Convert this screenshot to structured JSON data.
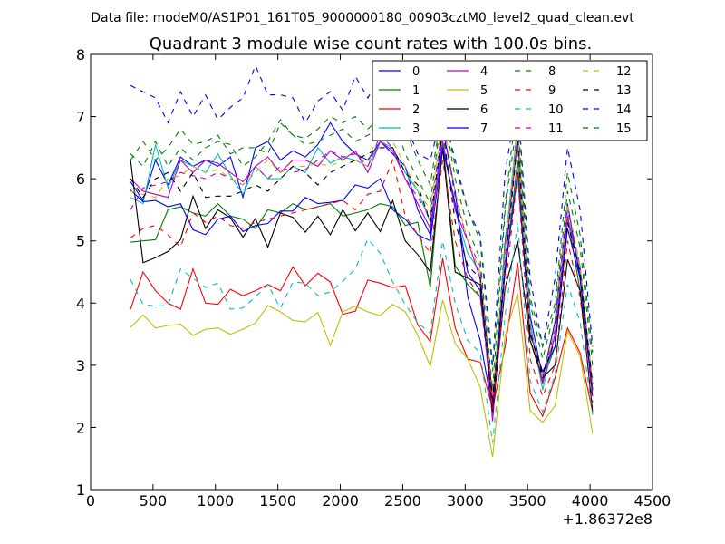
{
  "header": {
    "datafile": "Data file: modeM0/AS1P01_161T05_9000000180_00903cztM0_level2_quad_clean.evt"
  },
  "chart_data": {
    "type": "line",
    "title": "Quadrant 3 module wise count rates with 100.0s bins.",
    "xlabel": "",
    "ylabel": "",
    "x_offset_label": "+1.86372e8",
    "xlim": [
      0,
      4500
    ],
    "ylim": [
      1,
      8
    ],
    "xticks": [
      0,
      500,
      1000,
      1500,
      2000,
      2500,
      3000,
      3500,
      4000,
      4500
    ],
    "yticks": [
      1,
      2,
      3,
      4,
      5,
      6,
      7,
      8
    ],
    "legend_position": "top-right",
    "x": [
      320,
      420,
      520,
      620,
      720,
      820,
      920,
      1020,
      1120,
      1220,
      1320,
      1420,
      1520,
      1620,
      1720,
      1820,
      1920,
      2020,
      2120,
      2220,
      2320,
      2420,
      2520,
      2620,
      2720,
      2820,
      2920,
      3020,
      3120,
      3220,
      3320,
      3420,
      3520,
      3620,
      3720,
      3820,
      3920,
      4020
    ],
    "series": [
      {
        "name": "0",
        "color": "#0000ff",
        "dash": "solid",
        "values": [
          5.95,
          5.65,
          6.3,
          5.9,
          6.35,
          6.2,
          6.3,
          6.2,
          6.35,
          5.7,
          6.5,
          6.6,
          6.3,
          6.45,
          6.35,
          6.55,
          6.9,
          6.6,
          6.4,
          6.3,
          6.6,
          6.4,
          6.2,
          5.5,
          5.1,
          6.8,
          5.8,
          4.1,
          3.4,
          2.3,
          5.0,
          6.6,
          3.8,
          2.8,
          3.7,
          5.6,
          4.4,
          2.6
        ]
      },
      {
        "name": "1",
        "color": "#007f00",
        "dash": "solid",
        "values": [
          4.98,
          5.0,
          5.02,
          5.5,
          5.55,
          5.45,
          5.4,
          5.6,
          5.4,
          5.35,
          5.2,
          5.5,
          5.45,
          5.6,
          5.5,
          5.55,
          5.6,
          5.4,
          5.45,
          5.5,
          5.6,
          5.55,
          5.25,
          5.3,
          4.25,
          6.6,
          4.6,
          4.3,
          4.1,
          2.5,
          4.5,
          6.3,
          3.4,
          2.75,
          3.3,
          5.4,
          4.2,
          2.6
        ]
      },
      {
        "name": "2",
        "color": "#ff0000",
        "dash": "solid",
        "values": [
          3.9,
          4.5,
          4.2,
          4.0,
          3.9,
          4.55,
          4.0,
          3.98,
          4.22,
          4.12,
          4.2,
          4.3,
          4.2,
          4.58,
          4.28,
          4.48,
          4.34,
          3.82,
          3.87,
          4.37,
          4.32,
          4.25,
          4.28,
          3.65,
          3.38,
          4.72,
          3.6,
          3.1,
          3.05,
          2.3,
          3.3,
          4.65,
          2.55,
          2.18,
          2.8,
          3.6,
          3.2,
          2.25
        ]
      },
      {
        "name": "3",
        "color": "#00bfbf",
        "dash": "solid",
        "values": [
          5.7,
          5.6,
          6.55,
          5.85,
          6.3,
          6.2,
          6.1,
          6.4,
          6.05,
          5.75,
          6.2,
          6.0,
          6.0,
          6.2,
          6.1,
          6.5,
          6.25,
          6.35,
          6.3,
          6.2,
          6.6,
          6.5,
          6.1,
          5.8,
          5.3,
          6.6,
          5.5,
          4.8,
          4.5,
          2.2,
          4.9,
          6.9,
          3.7,
          2.6,
          3.5,
          5.3,
          4.6,
          2.7
        ]
      },
      {
        "name": "4",
        "color": "#bf00bf",
        "dash": "solid",
        "values": [
          6.0,
          5.8,
          5.75,
          5.7,
          6.3,
          6.1,
          6.3,
          6.25,
          6.1,
          5.95,
          6.2,
          6.35,
          6.1,
          6.3,
          6.3,
          6.2,
          6.45,
          6.3,
          6.45,
          6.1,
          6.6,
          6.45,
          6.0,
          5.6,
          5.2,
          6.6,
          5.5,
          5.0,
          4.4,
          2.1,
          4.6,
          6.8,
          3.6,
          2.7,
          3.5,
          5.4,
          4.5,
          2.6
        ]
      },
      {
        "name": "5",
        "color": "#bfbf00",
        "dash": "solid",
        "values": [
          3.61,
          3.81,
          3.6,
          3.64,
          3.66,
          3.48,
          3.58,
          3.6,
          3.5,
          3.58,
          3.68,
          3.96,
          3.86,
          3.72,
          3.7,
          3.85,
          3.32,
          3.86,
          3.95,
          3.86,
          3.8,
          3.98,
          3.86,
          3.48,
          2.98,
          4.05,
          3.35,
          3.1,
          2.65,
          1.52,
          3.48,
          4.15,
          2.27,
          2.08,
          2.35,
          3.55,
          3.15,
          1.9
        ]
      },
      {
        "name": "6",
        "color": "#000000",
        "dash": "solid",
        "values": [
          6.3,
          4.65,
          4.73,
          4.83,
          5.02,
          5.72,
          5.2,
          5.5,
          5.37,
          5.06,
          5.36,
          4.9,
          5.45,
          5.38,
          5.14,
          5.4,
          5.1,
          5.5,
          5.16,
          5.45,
          5.15,
          5.65,
          5.0,
          4.78,
          4.5,
          6.5,
          4.5,
          4.4,
          4.3,
          2.25,
          4.25,
          5.0,
          3.4,
          2.8,
          3.0,
          4.7,
          4.2,
          2.25
        ]
      },
      {
        "name": "7",
        "color": "#0000ff",
        "dash": "solid",
        "values": [
          5.82,
          5.63,
          5.65,
          5.55,
          5.6,
          5.18,
          5.1,
          5.35,
          5.4,
          5.15,
          5.25,
          5.28,
          5.48,
          5.48,
          5.7,
          5.6,
          5.62,
          5.65,
          5.9,
          5.85,
          6.0,
          5.5,
          5.35,
          5.1,
          5.0,
          6.5,
          5.6,
          4.5,
          4.2,
          2.4,
          4.5,
          6.1,
          3.5,
          2.9,
          3.3,
          5.2,
          4.4,
          2.5
        ]
      },
      {
        "name": "8",
        "color": "#007f00",
        "dash": "dash",
        "values": [
          6.4,
          6.2,
          6.6,
          6.2,
          6.5,
          6.3,
          6.5,
          6.6,
          6.55,
          6.2,
          6.35,
          6.6,
          6.95,
          6.7,
          6.55,
          6.6,
          6.7,
          6.8,
          6.6,
          6.7,
          6.8,
          7.0,
          6.4,
          6.0,
          5.6,
          7.2,
          6.0,
          5.2,
          4.7,
          2.6,
          5.5,
          7.0,
          4.0,
          3.1,
          3.9,
          5.8,
          4.9,
          3.0
        ]
      },
      {
        "name": "9",
        "color": "#ff0000",
        "dash": "dash",
        "values": [
          5.05,
          5.2,
          5.25,
          5.1,
          4.9,
          5.45,
          5.3,
          5.4,
          5.25,
          5.2,
          5.3,
          5.35,
          5.4,
          5.45,
          5.5,
          5.55,
          5.6,
          5.65,
          5.5,
          5.75,
          5.8,
          6.3,
          5.4,
          5.1,
          4.8,
          6.3,
          5.0,
          4.4,
          4.1,
          2.3,
          4.2,
          6.1,
          3.1,
          2.5,
          3.0,
          5.0,
          4.1,
          2.4
        ]
      },
      {
        "name": "10",
        "color": "#00bfbf",
        "dash": "dash",
        "values": [
          4.38,
          3.98,
          3.95,
          3.96,
          4.55,
          4.4,
          4.25,
          4.32,
          3.9,
          3.92,
          4.1,
          4.3,
          3.92,
          4.34,
          4.32,
          4.12,
          4.18,
          4.35,
          4.55,
          5.03,
          4.8,
          4.34,
          3.98,
          3.68,
          3.52,
          5.0,
          4.0,
          3.4,
          3.2,
          1.75,
          3.8,
          5.3,
          2.75,
          2.25,
          2.85,
          4.3,
          3.7,
          2.2
        ]
      },
      {
        "name": "11",
        "color": "#bf00bf",
        "dash": "dash",
        "values": [
          5.5,
          5.85,
          5.9,
          5.95,
          6.1,
          6.05,
          6.0,
          6.1,
          6.0,
          5.9,
          6.2,
          6.0,
          6.2,
          6.1,
          6.15,
          6.3,
          6.45,
          6.35,
          6.4,
          6.2,
          6.7,
          6.5,
          6.0,
          5.7,
          5.4,
          6.9,
          5.7,
          5.0,
          4.6,
          2.45,
          4.8,
          6.6,
          3.6,
          2.75,
          3.6,
          5.5,
          4.6,
          2.7
        ]
      },
      {
        "name": "12",
        "color": "#bfbf00",
        "dash": "dash",
        "values": [
          5.8,
          5.75,
          5.7,
          6.0,
          6.05,
          6.2,
          6.1,
          6.15,
          6.0,
          5.9,
          6.1,
          6.3,
          6.1,
          6.2,
          6.2,
          6.25,
          6.2,
          6.3,
          6.3,
          6.2,
          6.9,
          6.6,
          6.2,
          5.8,
          5.5,
          7.0,
          5.8,
          5.0,
          4.5,
          2.5,
          4.9,
          6.8,
          3.6,
          2.8,
          3.6,
          5.6,
          4.6,
          2.7
        ]
      },
      {
        "name": "13",
        "color": "#000000",
        "dash": "dash",
        "values": [
          6.0,
          5.7,
          6.0,
          6.1,
          5.8,
          6.1,
          5.7,
          5.72,
          5.72,
          5.8,
          5.9,
          5.8,
          6.0,
          6.2,
          6.1,
          5.9,
          6.1,
          6.2,
          6.3,
          6.4,
          6.5,
          6.5,
          6.1,
          5.9,
          5.3,
          6.8,
          5.3,
          4.6,
          4.4,
          2.45,
          4.6,
          6.6,
          3.5,
          2.85,
          3.4,
          5.3,
          4.5,
          2.7
        ]
      },
      {
        "name": "14",
        "color": "#0000ff",
        "dash": "dash",
        "values": [
          7.5,
          7.4,
          7.3,
          6.9,
          7.4,
          7.0,
          7.35,
          6.95,
          7.15,
          7.3,
          7.82,
          7.35,
          7.35,
          7.3,
          6.9,
          7.25,
          7.4,
          7.1,
          7.65,
          7.3,
          7.65,
          7.4,
          6.9,
          6.4,
          6.3,
          7.1,
          6.3,
          5.5,
          5.1,
          3.0,
          6.1,
          7.3,
          4.4,
          3.3,
          4.4,
          6.5,
          5.5,
          3.3
        ]
      },
      {
        "name": "15",
        "color": "#007f00",
        "dash": "dash",
        "values": [
          6.3,
          6.6,
          6.3,
          6.5,
          6.8,
          6.55,
          6.6,
          6.7,
          6.4,
          6.5,
          6.5,
          6.4,
          6.9,
          6.7,
          6.65,
          6.8,
          7.0,
          6.9,
          7.0,
          6.8,
          7.0,
          7.2,
          6.8,
          6.3,
          5.9,
          7.2,
          6.2,
          5.5,
          5.0,
          2.9,
          5.6,
          7.3,
          4.1,
          3.3,
          4.0,
          6.1,
          5.1,
          3.2
        ]
      }
    ]
  }
}
